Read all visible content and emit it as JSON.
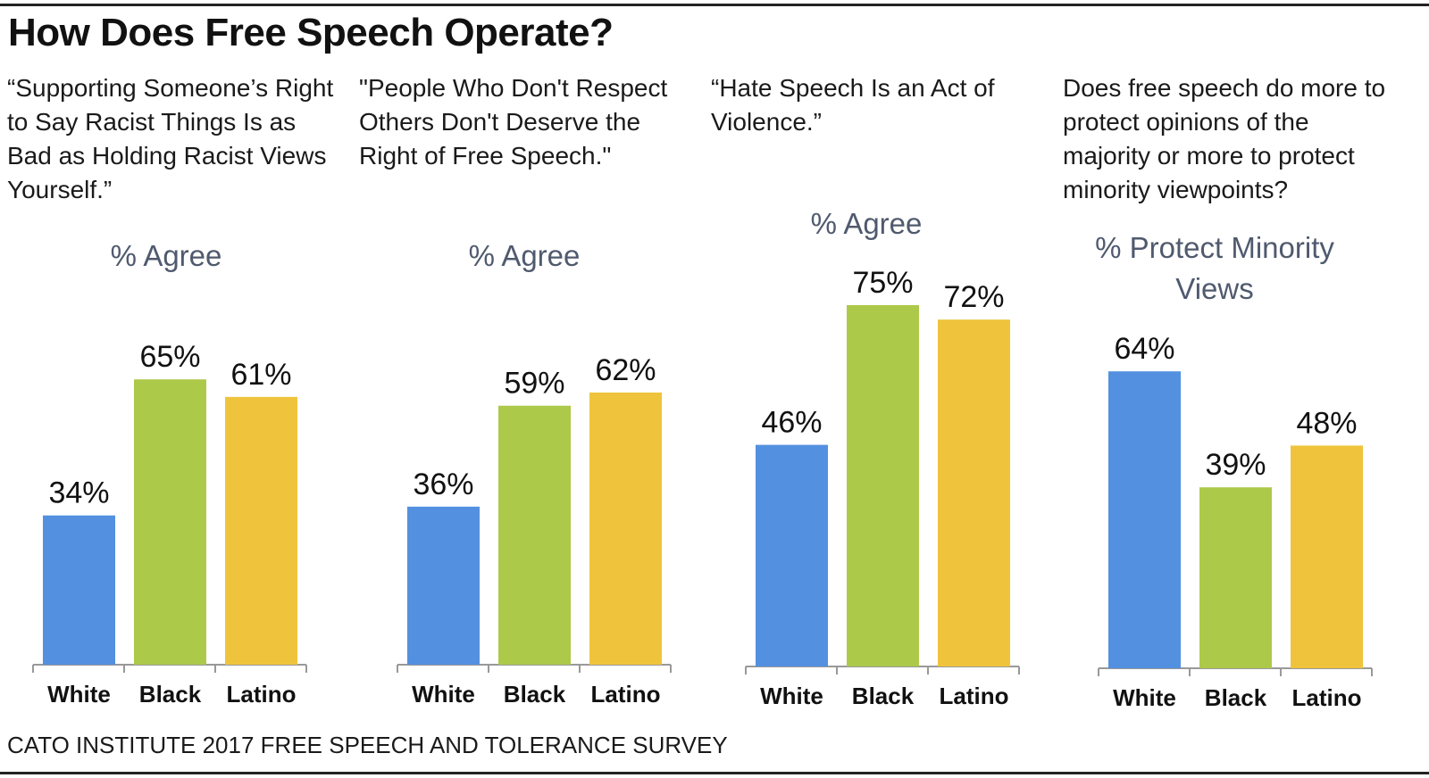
{
  "header": {
    "title": "How Does Free Speech Operate?"
  },
  "footer": {
    "source": "CATO INSTITUTE 2017 FREE SPEECH AND TOLERANCE SURVEY"
  },
  "colors": {
    "White": "#5390e0",
    "Black": "#adc94a",
    "Latino": "#efc43c",
    "measure_text": "#505a6e",
    "axis": "#999999"
  },
  "chart_data": [
    {
      "type": "bar",
      "question": "“Supporting Someone’s Right to Say Racist Things Is as Bad as Holding Racist Views Yourself.”",
      "measure": "% Agree",
      "categories": [
        "White",
        "Black",
        "Latino"
      ],
      "values": [
        34,
        65,
        61
      ],
      "value_labels": [
        "34%",
        "65%",
        "61%"
      ],
      "ylim": [
        0,
        100
      ]
    },
    {
      "type": "bar",
      "question": "\"People Who Don't Respect Others Don't Deserve the Right of Free Speech.\"",
      "measure": "% Agree",
      "categories": [
        "White",
        "Black",
        "Latino"
      ],
      "values": [
        36,
        59,
        62
      ],
      "value_labels": [
        "36%",
        "59%",
        "62%"
      ],
      "ylim": [
        0,
        100
      ]
    },
    {
      "type": "bar",
      "question": "“Hate Speech Is an Act of Violence.”",
      "measure": "% Agree",
      "categories": [
        "White",
        "Black",
        "Latino"
      ],
      "values": [
        46,
        75,
        72
      ],
      "value_labels": [
        "46%",
        "75%",
        "72%"
      ],
      "ylim": [
        0,
        100
      ]
    },
    {
      "type": "bar",
      "question": "Does free speech do more to protect opinions of the majority or more to protect minority viewpoints?",
      "measure": "% Protect Minority Views",
      "categories": [
        "White",
        "Black",
        "Latino"
      ],
      "values": [
        64,
        39,
        48
      ],
      "value_labels": [
        "64%",
        "39%",
        "48%"
      ],
      "ylim": [
        0,
        100
      ]
    }
  ]
}
